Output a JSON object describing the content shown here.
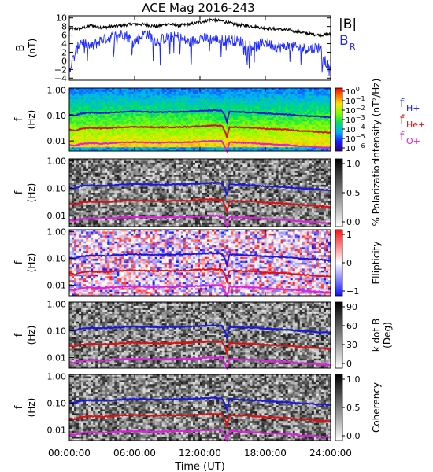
{
  "title": "ACE Mag 2016-243",
  "colors": {
    "B_total": "#000000",
    "B_R": "#1f2aff",
    "f_H": "#1818e0",
    "f_He": "#e01010",
    "f_O": "#e020e0"
  },
  "x_axis": {
    "label": "Time (UT)",
    "ticks": [
      "00:00:00",
      "06:00:00",
      "12:00:00",
      "18:00:00",
      "24:00:00"
    ],
    "tick_hours": [
      0,
      6,
      12,
      18,
      24
    ],
    "range_hours": [
      0,
      24
    ]
  },
  "freq_ticks": [
    "1.00",
    "0.10",
    "0.01"
  ],
  "legend_top": {
    "total": "|B|",
    "radial_main": "B",
    "radial_sub": "R"
  },
  "legend_freq": [
    {
      "main": "f",
      "sub": "H+",
      "color": "#1818e0"
    },
    {
      "main": "f",
      "sub": "He+",
      "color": "#e01010"
    },
    {
      "main": "f",
      "sub": "O+",
      "color": "#e020e0"
    }
  ],
  "chart_data": [
    {
      "type": "line",
      "panel": "B",
      "ylabel": "B",
      "yunit": "(nT)",
      "ylim": [
        -4.5,
        10.5
      ],
      "ytick_labels": [
        "10",
        "8",
        "6",
        "4",
        "2",
        "0",
        "−2",
        "−4"
      ],
      "ytick_values": [
        10,
        8,
        6,
        4,
        2,
        0,
        -2,
        -4
      ],
      "x_hours": [
        0,
        1,
        2,
        3,
        4,
        5,
        6,
        7,
        8,
        9,
        10,
        11,
        12,
        13,
        14,
        15,
        16,
        17,
        18,
        19,
        20,
        21,
        22,
        23,
        24
      ],
      "series": [
        {
          "name": "|B|",
          "values": [
            7.4,
            7.5,
            8.2,
            7.8,
            8.0,
            8.3,
            8.6,
            8.4,
            8.0,
            8.6,
            8.2,
            8.5,
            9.0,
            9.6,
            9.3,
            8.6,
            8.2,
            8.0,
            7.6,
            7.4,
            7.2,
            6.8,
            6.3,
            6.0,
            6.2
          ]
        },
        {
          "name": "B_R",
          "values": [
            -2.0,
            4.6,
            3.2,
            5.0,
            5.6,
            6.4,
            4.4,
            6.6,
            4.6,
            5.4,
            5.6,
            4.2,
            5.4,
            5.0,
            4.8,
            4.8,
            4.4,
            3.2,
            4.4,
            3.2,
            3.4,
            3.0,
            2.8,
            3.2,
            -3.0
          ]
        }
      ]
    },
    {
      "type": "heatmap",
      "panel": "Intensity",
      "ylabel": "f",
      "yunit": "(Hz)",
      "yscale": "log",
      "ylim": [
        0.004,
        1.2
      ],
      "colorbar": {
        "label": "Intensity (nT²/Hz)",
        "scale": "log",
        "tick_exponents": [
          "0",
          "−1",
          "−2",
          "−3",
          "−4",
          "−5",
          "−6"
        ],
        "tick_base": "10"
      }
    },
    {
      "type": "heatmap",
      "panel": "Polarization",
      "ylabel": "f",
      "yunit": "(Hz)",
      "yscale": "log",
      "colorbar": {
        "label": "% Polarization",
        "ticks": [
          "1.0",
          "0.5",
          "0.0"
        ]
      }
    },
    {
      "type": "heatmap",
      "panel": "Ellipticity",
      "ylabel": "f",
      "yunit": "(Hz)",
      "yscale": "log",
      "colorbar": {
        "label": "Ellipticity",
        "ticks": [
          "1",
          "0",
          "−1"
        ]
      }
    },
    {
      "type": "heatmap",
      "panel": "k dot B",
      "ylabel": "f",
      "yunit": "(Hz)",
      "yscale": "log",
      "colorbar": {
        "label_1": "k dot B",
        "label_2": "(Deg)",
        "ticks": [
          "90",
          "60",
          "30",
          "0"
        ]
      }
    },
    {
      "type": "heatmap",
      "panel": "Coherency",
      "ylabel": "f",
      "yunit": "(Hz)",
      "yscale": "log",
      "colorbar": {
        "label": "Coherency",
        "ticks": [
          "1.0",
          "0.5",
          "0.0"
        ]
      }
    }
  ],
  "gyrofrequency_lines": {
    "x_hours": [
      0,
      0.5,
      1,
      2,
      3,
      4,
      5,
      6,
      7,
      8,
      9,
      10,
      11,
      12,
      13,
      14,
      14.5,
      14.7,
      15,
      16,
      17,
      18,
      19,
      20,
      21,
      22,
      23,
      24
    ],
    "f_H": [
      0.11,
      0.1,
      0.12,
      0.13,
      0.125,
      0.13,
      0.14,
      0.145,
      0.14,
      0.135,
      0.14,
      0.14,
      0.145,
      0.15,
      0.16,
      0.155,
      0.05,
      0.14,
      0.14,
      0.135,
      0.13,
      0.12,
      0.115,
      0.11,
      0.1,
      0.095,
      0.09,
      0.085
    ],
    "f_He": [
      0.028,
      0.025,
      0.03,
      0.033,
      0.031,
      0.033,
      0.035,
      0.036,
      0.035,
      0.034,
      0.035,
      0.035,
      0.036,
      0.038,
      0.04,
      0.039,
      0.013,
      0.035,
      0.035,
      0.034,
      0.033,
      0.03,
      0.029,
      0.028,
      0.025,
      0.024,
      0.022,
      0.021
    ],
    "f_O": [
      0.007,
      0.0063,
      0.0075,
      0.0082,
      0.0078,
      0.0082,
      0.0088,
      0.009,
      0.0088,
      0.0085,
      0.0088,
      0.0088,
      0.009,
      0.0095,
      0.01,
      0.0098,
      0.0032,
      0.0088,
      0.0088,
      0.0085,
      0.0082,
      0.0075,
      0.0072,
      0.007,
      0.0063,
      0.006,
      0.0056,
      0.0053
    ]
  }
}
